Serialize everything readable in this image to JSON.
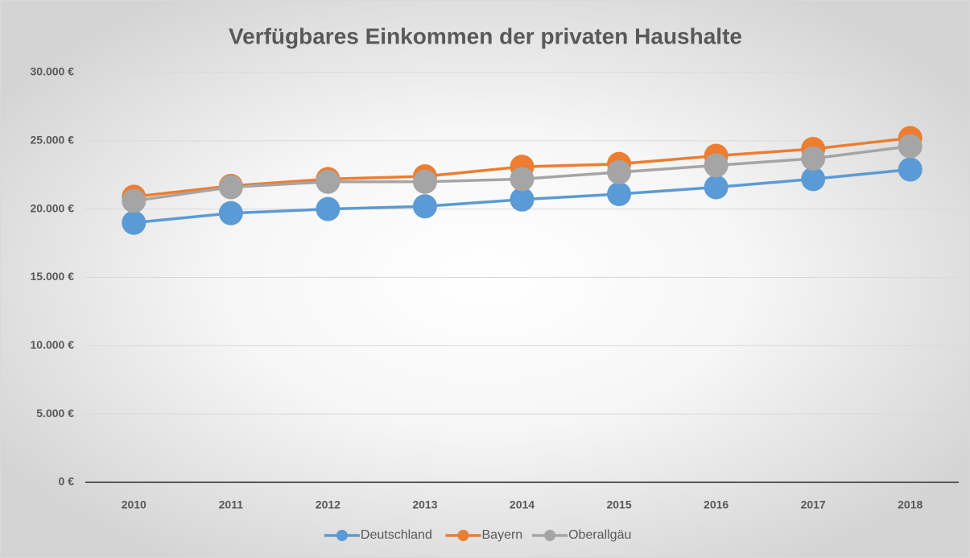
{
  "chart_data": {
    "type": "line",
    "title": "Verfügbares Einkommen der privaten Haushalte",
    "categories": [
      "2010",
      "2011",
      "2012",
      "2013",
      "2014",
      "2015",
      "2016",
      "2017",
      "2018"
    ],
    "series": [
      {
        "name": "Deutschland",
        "color": "#5b9bd5",
        "values": [
          19000,
          19700,
          20000,
          20200,
          20700,
          21100,
          21600,
          22200,
          22900
        ]
      },
      {
        "name": "Bayern",
        "color": "#ed7d31",
        "values": [
          20900,
          21700,
          22200,
          22400,
          23100,
          23300,
          23900,
          24400,
          25200
        ]
      },
      {
        "name": "Oberallgäu",
        "color": "#a5a5a5",
        "values": [
          20600,
          21600,
          22000,
          22000,
          22200,
          22700,
          23200,
          23700,
          24600
        ]
      }
    ],
    "ylim": [
      0,
      30000
    ],
    "yticks": [
      {
        "value": 0,
        "label": "0 €"
      },
      {
        "value": 5000,
        "label": "5.000 €"
      },
      {
        "value": 10000,
        "label": "10.000 €"
      },
      {
        "value": 15000,
        "label": "15.000 €"
      },
      {
        "value": 20000,
        "label": "20.000 €"
      },
      {
        "value": 25000,
        "label": "25.000 €"
      },
      {
        "value": 30000,
        "label": "30.000 €"
      }
    ],
    "grid": true,
    "legend": "bottom"
  }
}
